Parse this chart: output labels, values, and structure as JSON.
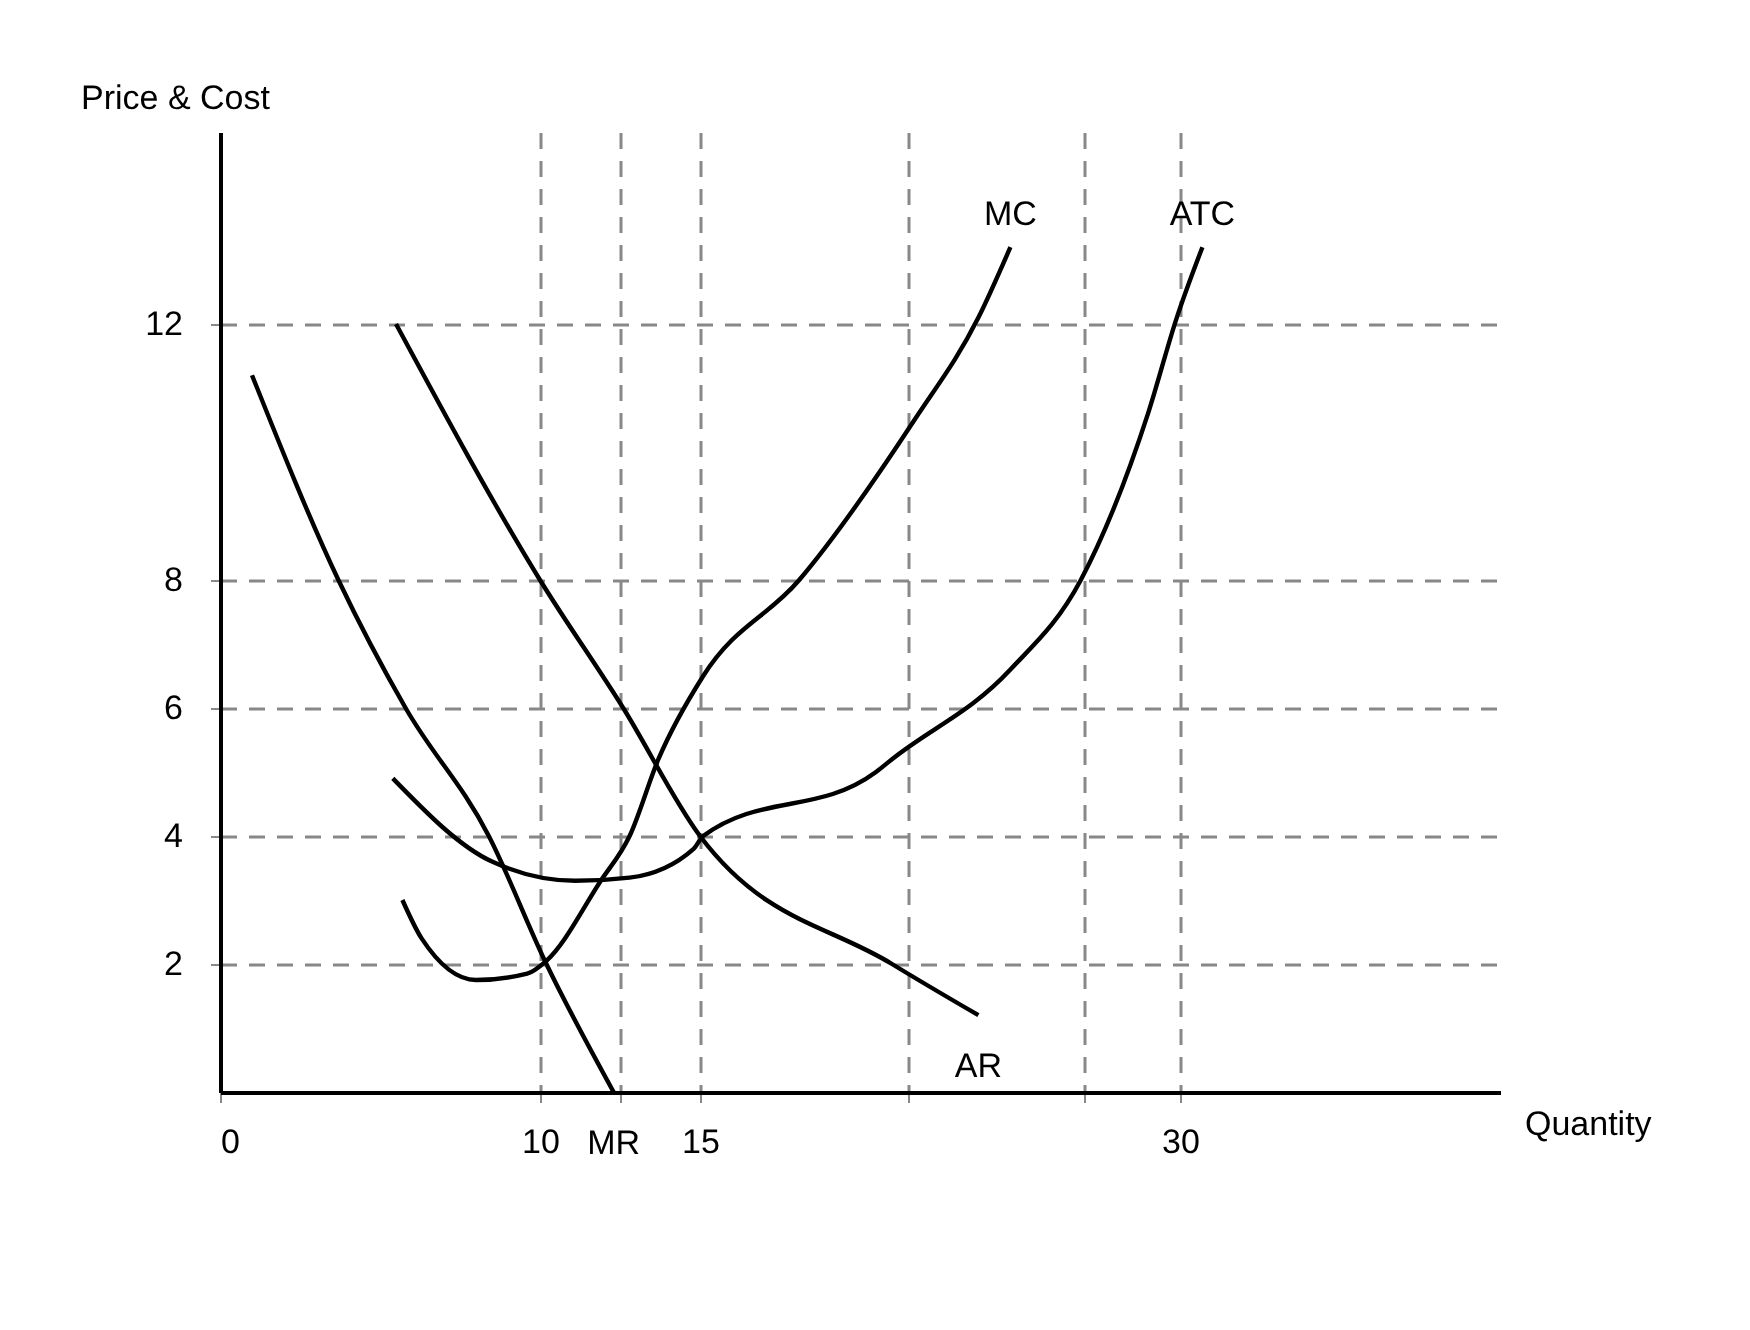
{
  "chart_data": {
    "type": "line",
    "xlabel": "Quantity",
    "ylabel": "Price & Cost",
    "xlim": [
      0,
      40
    ],
    "ylim": [
      0,
      15
    ],
    "xticks": [
      0,
      10,
      {
        "value": 12.5,
        "label": null
      },
      15,
      {
        "value": 21.5,
        "label": null
      },
      {
        "value": 27,
        "label": null
      },
      30
    ],
    "yticks": [
      2,
      4,
      6,
      8,
      12
    ],
    "grid": true,
    "line_style": "solid",
    "marker": "none",
    "series": [
      {
        "name": "MR",
        "color": "#000000",
        "x": [
          1.0,
          3.7,
          5.8,
          8.4,
          10.2,
          12.3
        ],
        "values": [
          11.2,
          8,
          6,
          4,
          2,
          0
        ]
      },
      {
        "name": "AR",
        "color": "#000000",
        "x": [
          5.5,
          10.0,
          12.6,
          15.0,
          21.0,
          23.7
        ],
        "values": [
          12,
          8,
          6,
          4,
          2,
          1.2
        ]
      },
      {
        "name": "MC",
        "color": "#000000",
        "x": [
          5.7,
          6.3,
          8.0,
          9.6,
          10.2,
          11.9,
          12.8,
          13.7,
          15.1,
          18.1,
          21.7,
          23.7,
          24.7
        ],
        "values": [
          3.0,
          2.4,
          1.75,
          1.85,
          2.05,
          3.3,
          4,
          5.2,
          6.5,
          8,
          10.5,
          12.1,
          13.2
        ]
      },
      {
        "name": "ATC",
        "color": "#000000",
        "x": [
          5.4,
          8.5,
          11.1,
          12.8,
          14.8,
          15.1,
          20.5,
          21.0,
          24.7,
          26.9,
          29.0,
          29.9,
          30.7
        ],
        "values": [
          4.9,
          3.6,
          3.3,
          3.35,
          3.8,
          4,
          5.0,
          5.2,
          6.6,
          8,
          10.6,
          12.1,
          13.2
        ]
      }
    ]
  }
}
